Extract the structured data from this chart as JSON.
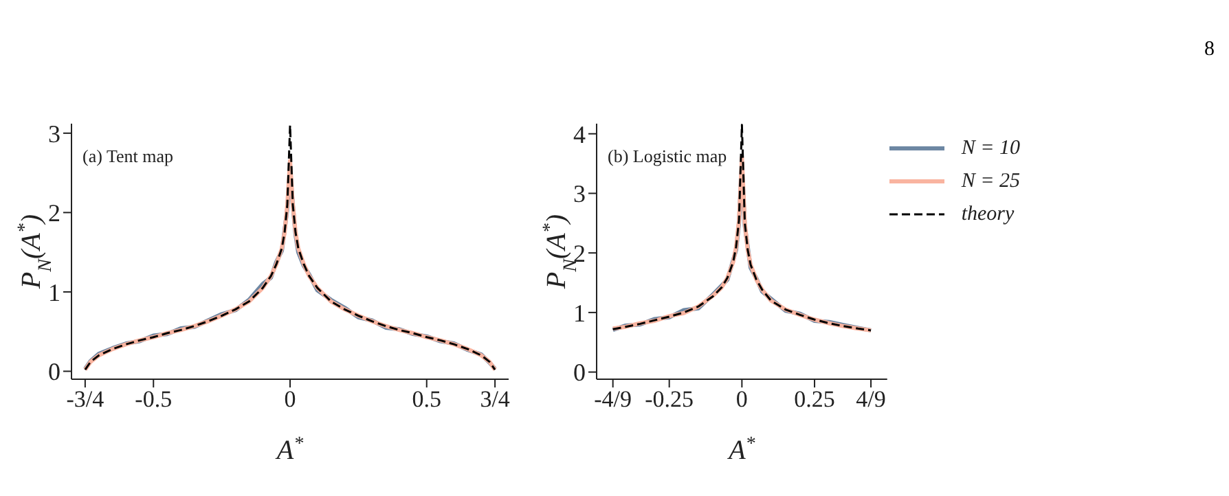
{
  "chart_data": [
    {
      "type": "line",
      "xlabel": "A$^{*}$",
      "ylabel": "P$_{N}$(A$^{*}$)",
      "annotations": [
        "(a) Tent map"
      ],
      "xlim": [
        -0.8,
        0.8
      ],
      "ylim": [
        -0.1,
        3.12
      ],
      "xticks": [
        {
          "value": -0.75,
          "label": "-3/4"
        },
        -0.5,
        0,
        0.5,
        {
          "value": 0.75,
          "label": "3/4"
        }
      ],
      "yticks": [
        0,
        1,
        2,
        3
      ],
      "grid": false,
      "legend": false,
      "x": [
        -0.75,
        -0.73,
        -0.7,
        -0.65,
        -0.6,
        -0.55,
        -0.5,
        -0.45,
        -0.4,
        -0.35,
        -0.3,
        -0.25,
        -0.2,
        -0.15,
        -0.1,
        -0.07,
        -0.05,
        -0.03,
        -0.02,
        -0.01,
        0,
        0.01,
        0.02,
        0.03,
        0.05,
        0.07,
        0.1,
        0.15,
        0.2,
        0.25,
        0.3,
        0.35,
        0.4,
        0.45,
        0.5,
        0.55,
        0.6,
        0.65,
        0.7,
        0.73,
        0.75
      ],
      "series": [
        {
          "color": "#6d87a3",
          "line_style": "solid",
          "values": [
            0.03,
            0.13,
            0.22,
            0.29,
            0.35,
            0.38,
            0.45,
            0.47,
            0.54,
            0.56,
            0.64,
            0.72,
            0.77,
            0.9,
            1.1,
            1.18,
            1.38,
            1.52,
            1.78,
            2.05,
            2.55,
            2.1,
            1.72,
            1.5,
            1.33,
            1.22,
            1.02,
            0.9,
            0.8,
            0.68,
            0.64,
            0.55,
            0.53,
            0.47,
            0.44,
            0.38,
            0.35,
            0.27,
            0.21,
            0.11,
            0.03
          ]
        },
        {
          "color": "#f9b4a0",
          "line_style": "solid",
          "values": [
            0.02,
            0.12,
            0.2,
            0.28,
            0.34,
            0.39,
            0.43,
            0.48,
            0.52,
            0.57,
            0.63,
            0.7,
            0.78,
            0.88,
            1.05,
            1.2,
            1.35,
            1.55,
            1.75,
            2.1,
            2.65,
            2.1,
            1.75,
            1.55,
            1.35,
            1.2,
            1.05,
            0.88,
            0.78,
            0.7,
            0.63,
            0.57,
            0.52,
            0.48,
            0.43,
            0.39,
            0.34,
            0.28,
            0.2,
            0.12,
            0.02
          ]
        },
        {
          "color": "#000000",
          "line_style": "dashed",
          "values": [
            0.02,
            0.12,
            0.2,
            0.28,
            0.34,
            0.39,
            0.43,
            0.48,
            0.52,
            0.57,
            0.63,
            0.7,
            0.78,
            0.88,
            1.05,
            1.2,
            1.35,
            1.55,
            1.75,
            2.1,
            3.1,
            2.1,
            1.75,
            1.55,
            1.35,
            1.2,
            1.05,
            0.88,
            0.78,
            0.7,
            0.63,
            0.57,
            0.52,
            0.48,
            0.43,
            0.39,
            0.34,
            0.28,
            0.2,
            0.12,
            0.02
          ]
        }
      ]
    },
    {
      "type": "line",
      "xlabel": "A$^{*}$",
      "ylabel": "P$_{N}$(A$^{*}$)",
      "annotations": [
        "(b) Logistic map",
        "8"
      ],
      "xlim": [
        -0.5,
        0.5
      ],
      "ylim": [
        -0.12,
        4.17
      ],
      "xticks": [
        {
          "value": -0.444,
          "label": "-4/9"
        },
        -0.25,
        0,
        0.25,
        {
          "value": 0.444,
          "label": "4/9"
        }
      ],
      "yticks": [
        0,
        1,
        2,
        3,
        4
      ],
      "grid": false,
      "legend": "top right",
      "x": [
        -0.444,
        -0.4,
        -0.35,
        -0.3,
        -0.25,
        -0.2,
        -0.15,
        -0.1,
        -0.07,
        -0.05,
        -0.03,
        -0.02,
        -0.01,
        0,
        0.01,
        0.02,
        0.03,
        0.05,
        0.07,
        0.1,
        0.15,
        0.2,
        0.25,
        0.3,
        0.35,
        0.4,
        0.444
      ],
      "series": [
        {
          "name": "N = 10",
          "color": "#6d87a3",
          "line_style": "solid",
          "values": [
            0.71,
            0.78,
            0.8,
            0.89,
            0.92,
            1.04,
            1.07,
            1.3,
            1.45,
            1.55,
            1.88,
            2.05,
            2.5,
            3.5,
            2.45,
            2.1,
            1.75,
            1.57,
            1.35,
            1.23,
            1.03,
            0.98,
            0.86,
            0.84,
            0.79,
            0.74,
            0.7
          ]
        },
        {
          "name": "N = 25",
          "color": "#f9b4a0",
          "line_style": "solid",
          "values": [
            0.73,
            0.76,
            0.82,
            0.86,
            0.94,
            0.99,
            1.1,
            1.28,
            1.42,
            1.58,
            1.85,
            2.1,
            2.55,
            3.6,
            2.5,
            2.05,
            1.8,
            1.55,
            1.38,
            1.2,
            1.05,
            0.96,
            0.88,
            0.82,
            0.77,
            0.73,
            0.7
          ]
        },
        {
          "name": "theory",
          "color": "#000000",
          "line_style": "dashed",
          "values": [
            0.72,
            0.76,
            0.81,
            0.87,
            0.93,
            1.0,
            1.1,
            1.27,
            1.42,
            1.58,
            1.85,
            2.1,
            2.55,
            4.15,
            2.5,
            2.05,
            1.8,
            1.55,
            1.38,
            1.2,
            1.05,
            0.96,
            0.88,
            0.82,
            0.77,
            0.73,
            0.7
          ]
        }
      ]
    }
  ]
}
